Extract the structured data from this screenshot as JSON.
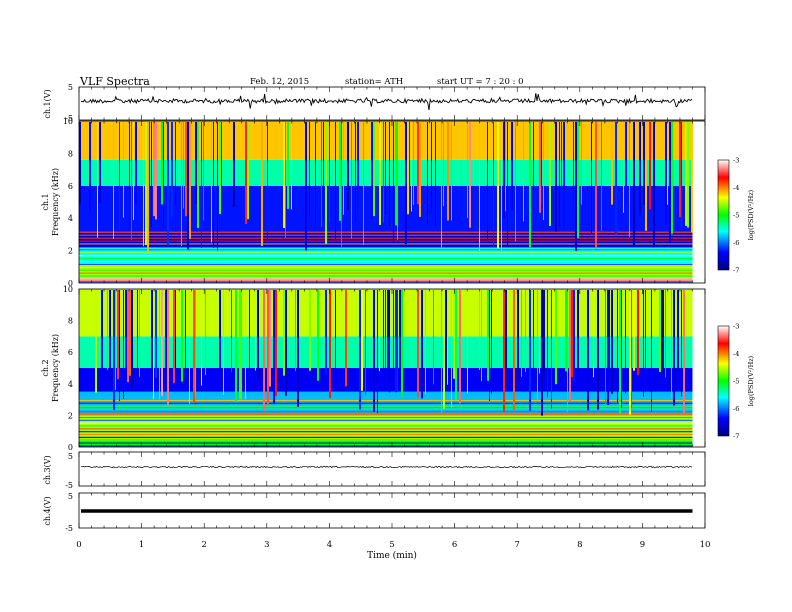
{
  "header": {
    "title": "VLF Spectra",
    "date": "Feb. 12, 2015",
    "station": "station= ATH",
    "start": "start UT = 7 : 20 : 0"
  },
  "chart_data": [
    {
      "type": "line",
      "panel": "ch1-waveform",
      "ylabel": "ch.1(V)",
      "ylim": [
        -5,
        5
      ],
      "yticks": [
        "5",
        "-5"
      ],
      "xlim": [
        0,
        10
      ],
      "series_extent_min": [
        0,
        9.8
      ],
      "level": 0,
      "color": "#000000"
    },
    {
      "type": "heatmap",
      "panel": "ch1-spectrogram",
      "ylabel": "ch.1\nFrequency (kHz)",
      "ylim": [
        0,
        10
      ],
      "yticks": [
        "0",
        "2",
        "4",
        "6",
        "8",
        "10"
      ],
      "xlim": [
        0,
        10
      ],
      "data_extent_min": [
        0,
        9.8
      ],
      "colorbar": {
        "label": "log(PSD(V²/Hz)",
        "range": [
          -7,
          -3
        ],
        "ticks": [
          "-3",
          "-4",
          "-5",
          "-6",
          "-7"
        ],
        "colors": [
          "#000080",
          "#0000ff",
          "#00ffff",
          "#00ff00",
          "#ffff00",
          "#ff0000",
          "#ffffff"
        ]
      },
      "bands_kHz": [
        {
          "from": 0,
          "to": 0.3,
          "level": -3.3
        },
        {
          "from": 0.3,
          "to": 1.2,
          "level": -4.6
        },
        {
          "from": 1.2,
          "to": 2.2,
          "level": -5.6
        },
        {
          "from": 2.2,
          "to": 3.2,
          "level": -6.7
        },
        {
          "from": 3.2,
          "to": 6.0,
          "level": -6.3
        },
        {
          "from": 6.0,
          "to": 7.6,
          "level": -5.4
        },
        {
          "from": 7.6,
          "to": 10,
          "level": -4.2
        }
      ]
    },
    {
      "type": "heatmap",
      "panel": "ch2-spectrogram",
      "ylabel": "ch.2\nFrequency (kHz)",
      "ylim": [
        0,
        10
      ],
      "yticks": [
        "0",
        "2",
        "4",
        "6",
        "8",
        "10"
      ],
      "xlim": [
        0,
        10
      ],
      "data_extent_min": [
        0,
        9.8
      ],
      "colorbar": {
        "label": "log(PSD(V²/Hz)",
        "range": [
          -7,
          -3
        ],
        "ticks": [
          "-3",
          "-4",
          "-5",
          "-6",
          "-7"
        ],
        "colors": [
          "#000080",
          "#0000ff",
          "#00ffff",
          "#00ff00",
          "#ffff00",
          "#ff0000",
          "#ffffff"
        ]
      },
      "bands_kHz": [
        {
          "from": 0,
          "to": 0.5,
          "level": -5.0
        },
        {
          "from": 0.5,
          "to": 2.0,
          "level": -4.6
        },
        {
          "from": 2.0,
          "to": 3.5,
          "level": -5.8
        },
        {
          "from": 3.5,
          "to": 5.0,
          "level": -6.4
        },
        {
          "from": 5.0,
          "to": 7.0,
          "level": -5.4
        },
        {
          "from": 7.0,
          "to": 10,
          "level": -4.5
        }
      ]
    },
    {
      "type": "line",
      "panel": "ch3-waveform",
      "ylabel": "ch.3(V)",
      "ylim": [
        -5,
        5
      ],
      "yticks": [
        "5",
        "-5"
      ],
      "xlim": [
        0,
        10
      ],
      "series_extent_min": [
        0,
        9.8
      ],
      "level": 0,
      "color": "#000000"
    },
    {
      "type": "line",
      "panel": "ch4-waveform",
      "ylabel": "ch.4(V)",
      "ylim": [
        -5,
        5
      ],
      "yticks": [
        "5",
        "-5"
      ],
      "xlim": [
        0,
        10
      ],
      "series_extent_min": [
        0,
        9.8
      ],
      "level": 0,
      "color": "#000000"
    }
  ],
  "xaxis": {
    "label": "Time (min)",
    "ticks": [
      "0",
      "1",
      "2",
      "3",
      "4",
      "5",
      "6",
      "7",
      "8",
      "9",
      "10"
    ]
  }
}
